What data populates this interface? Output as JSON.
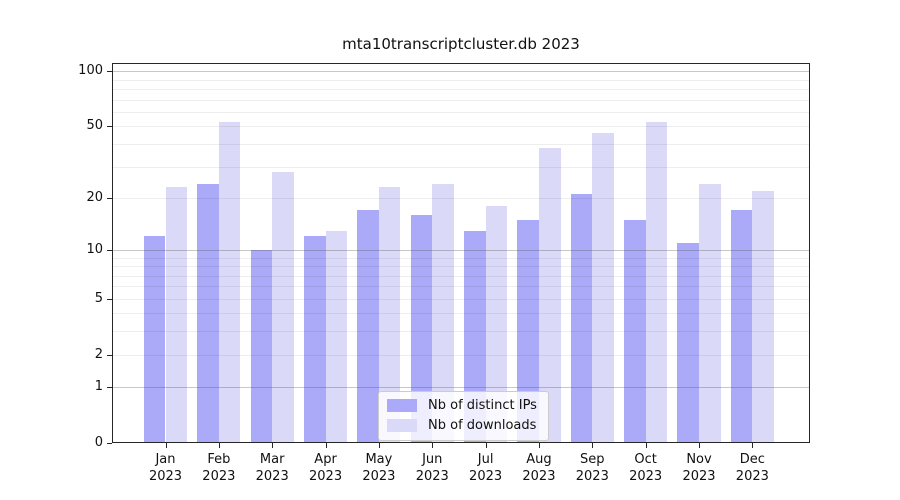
{
  "chart_data": {
    "type": "bar",
    "title": "mta10transcriptcluster.db 2023",
    "categories": [
      "Jan",
      "Feb",
      "Mar",
      "Apr",
      "May",
      "Jun",
      "Jul",
      "Aug",
      "Sep",
      "Oct",
      "Nov",
      "Dec"
    ],
    "x_year_label": "2023",
    "series": [
      {
        "name": "Nb of distinct IPs",
        "color": "#aaaaf8",
        "values": [
          12,
          24,
          10,
          12,
          17,
          16,
          13,
          15,
          21,
          15,
          11,
          17
        ]
      },
      {
        "name": "Nb of downloads",
        "color": "#dadaf8",
        "values": [
          23,
          53,
          28,
          13,
          23,
          24,
          18,
          38,
          46,
          53,
          24,
          22
        ]
      }
    ],
    "y_axis": {
      "scale": "log10(1+x)",
      "tick_values": [
        0,
        1,
        2,
        5,
        10,
        20,
        50,
        100
      ],
      "major_gridlines": [
        1,
        10,
        100
      ],
      "minor_gridlines": [
        2,
        3,
        4,
        5,
        6,
        7,
        8,
        9,
        20,
        30,
        40,
        50,
        60,
        70,
        80,
        90
      ],
      "top_value": 111
    },
    "grid": true,
    "legend_position": "lower center"
  }
}
